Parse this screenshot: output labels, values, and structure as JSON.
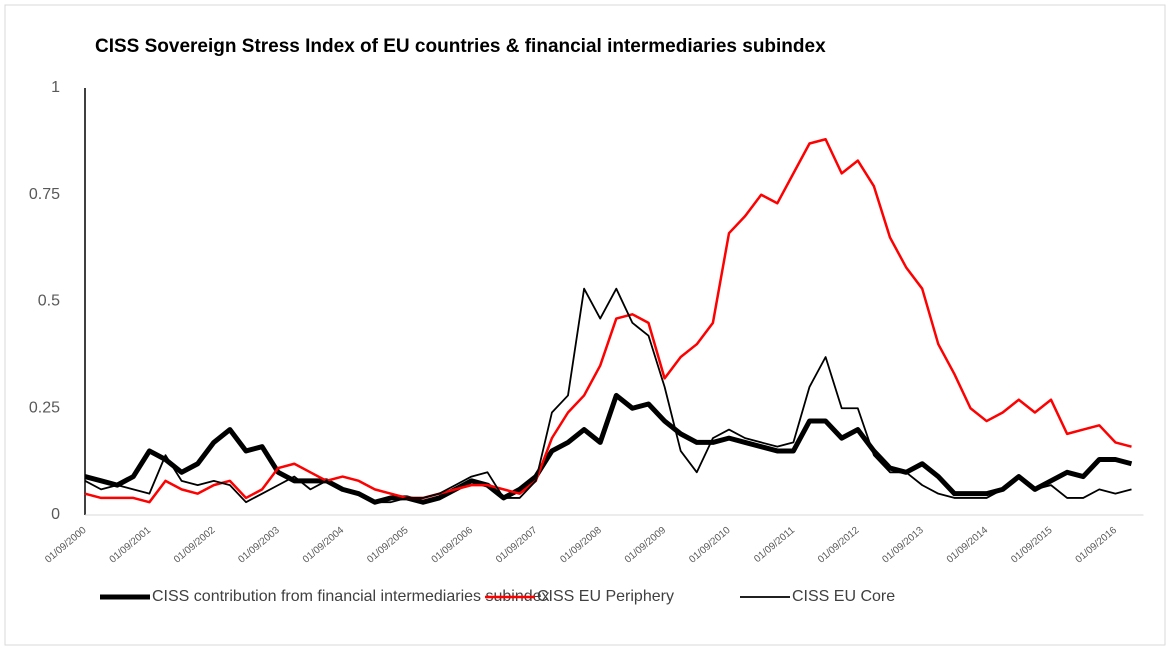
{
  "chart_data": {
    "type": "line",
    "title": "CISS Sovereign Stress Index of EU countries & financial intermediaries subindex",
    "categories": [
      "01/09/2000",
      null,
      null,
      null,
      "01/09/2001",
      null,
      null,
      null,
      "01/09/2002",
      null,
      null,
      null,
      "01/09/2003",
      null,
      null,
      null,
      "01/09/2004",
      null,
      null,
      null,
      "01/09/2005",
      null,
      null,
      null,
      "01/09/2006",
      null,
      null,
      null,
      "01/09/2007",
      null,
      null,
      null,
      "01/09/2008",
      null,
      null,
      null,
      "01/09/2009",
      null,
      null,
      null,
      "01/09/2010",
      null,
      null,
      null,
      "01/09/2011",
      null,
      null,
      null,
      "01/09/2012",
      null,
      null,
      null,
      "01/09/2013",
      null,
      null,
      null,
      "01/09/2014",
      null,
      null,
      null,
      "01/09/2015",
      null,
      null,
      null,
      "01/09/2016",
      null
    ],
    "series": [
      {
        "name": "CISS contribution from financial intermediaries subindex",
        "color": "#000000",
        "width": 5,
        "values": [
          0.09,
          0.08,
          0.07,
          0.09,
          0.15,
          0.13,
          0.1,
          0.12,
          0.17,
          0.2,
          0.15,
          0.16,
          0.1,
          0.08,
          0.08,
          0.08,
          0.06,
          0.05,
          0.03,
          0.04,
          0.04,
          0.03,
          0.04,
          0.06,
          0.08,
          0.07,
          0.04,
          0.06,
          0.09,
          0.15,
          0.17,
          0.2,
          0.17,
          0.28,
          0.25,
          0.26,
          0.22,
          0.19,
          0.17,
          0.17,
          0.18,
          0.17,
          0.16,
          0.15,
          0.15,
          0.22,
          0.22,
          0.18,
          0.2,
          0.15,
          0.11,
          0.1,
          0.12,
          0.09,
          0.05,
          0.05,
          0.05,
          0.06,
          0.09,
          0.06,
          0.08,
          0.1,
          0.09,
          0.13,
          0.13,
          0.12
        ]
      },
      {
        "name": "CISS EU Periphery",
        "color": "#ff0000",
        "width": 2.5,
        "values": [
          0.05,
          0.04,
          0.04,
          0.04,
          0.03,
          0.08,
          0.06,
          0.05,
          0.07,
          0.08,
          0.04,
          0.06,
          0.11,
          0.12,
          0.1,
          0.08,
          0.09,
          0.08,
          0.06,
          0.05,
          0.04,
          0.04,
          0.05,
          0.06,
          0.07,
          0.07,
          0.06,
          0.05,
          0.08,
          0.18,
          0.24,
          0.28,
          0.35,
          0.46,
          0.47,
          0.45,
          0.32,
          0.37,
          0.4,
          0.45,
          0.66,
          0.7,
          0.75,
          0.73,
          0.8,
          0.87,
          0.88,
          0.8,
          0.83,
          0.77,
          0.65,
          0.58,
          0.53,
          0.4,
          0.33,
          0.25,
          0.22,
          0.24,
          0.27,
          0.24,
          0.27,
          0.19,
          0.2,
          0.21,
          0.17,
          0.16
        ]
      },
      {
        "name": "CISS EU Core",
        "color": "#000000",
        "width": 1.8,
        "values": [
          0.08,
          0.06,
          0.07,
          0.06,
          0.05,
          0.14,
          0.08,
          0.07,
          0.08,
          0.07,
          0.03,
          0.05,
          0.07,
          0.09,
          0.06,
          0.08,
          0.06,
          0.05,
          0.03,
          0.03,
          0.04,
          0.04,
          0.05,
          0.07,
          0.09,
          0.1,
          0.04,
          0.04,
          0.08,
          0.24,
          0.28,
          0.53,
          0.46,
          0.53,
          0.45,
          0.42,
          0.3,
          0.15,
          0.1,
          0.18,
          0.2,
          0.18,
          0.17,
          0.16,
          0.17,
          0.3,
          0.37,
          0.25,
          0.25,
          0.14,
          0.1,
          0.1,
          0.07,
          0.05,
          0.04,
          0.04,
          0.04,
          0.06,
          0.09,
          0.06,
          0.07,
          0.04,
          0.04,
          0.06,
          0.05,
          0.06
        ]
      }
    ],
    "ylim": [
      0,
      1
    ],
    "yticks": [
      0,
      0.25,
      0.5,
      0.75,
      1
    ],
    "grid": false,
    "legend": "bottom"
  }
}
